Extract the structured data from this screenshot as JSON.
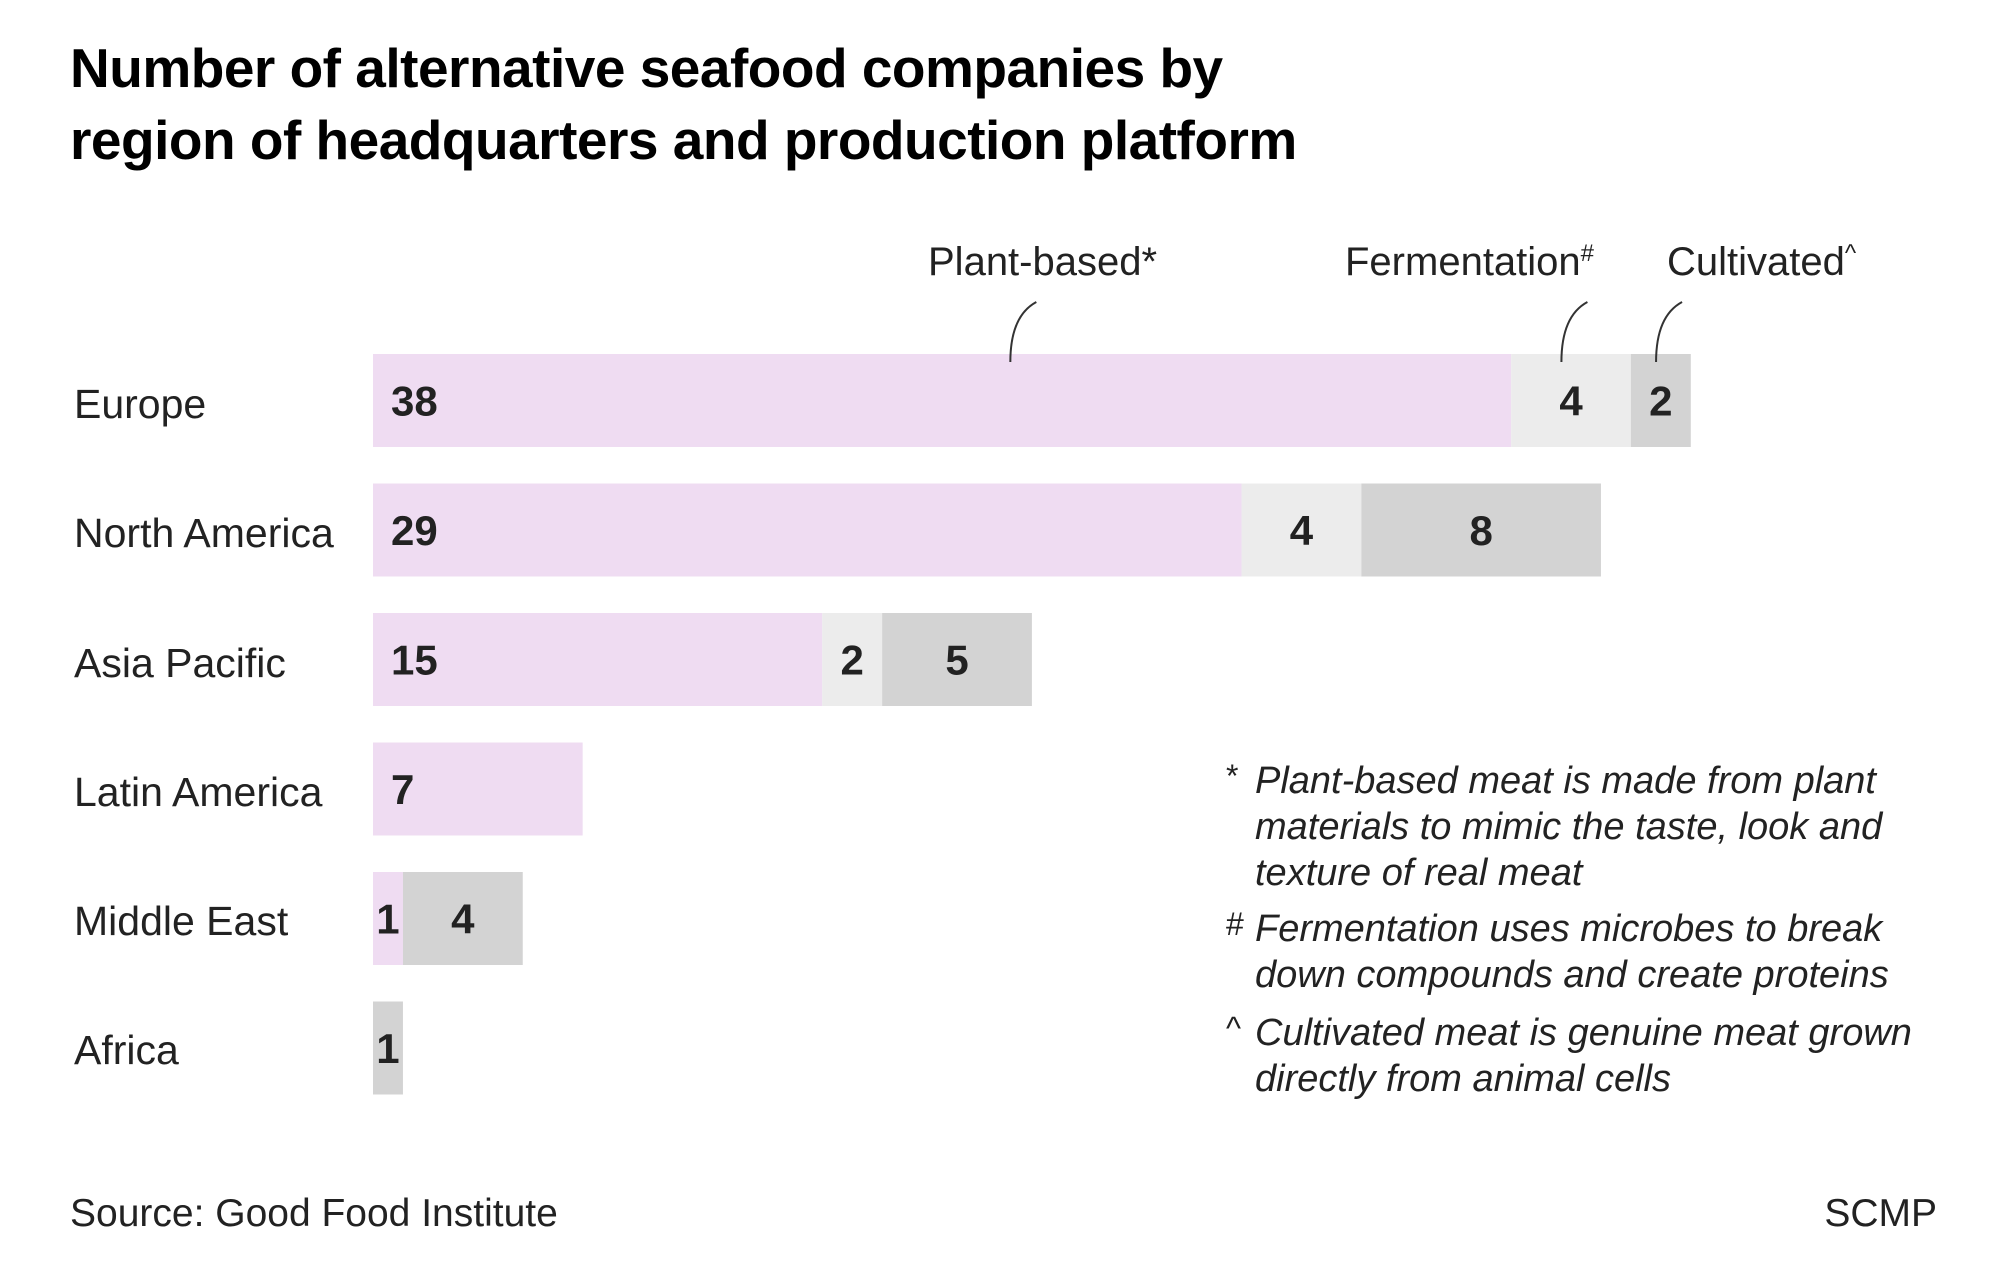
{
  "chart_data": {
    "type": "bar",
    "orientation": "horizontal",
    "stacked": true,
    "title": "Number of alternative seafood companies by region of headquarters and production platform",
    "title_lines": [
      "Number of alternative seafood companies by",
      "region of headquarters and production platform"
    ],
    "categories": [
      "Europe",
      "North America",
      "Asia Pacific",
      "Latin America",
      "Middle East",
      "Africa"
    ],
    "series": [
      {
        "name": "Plant-based",
        "mark": "*",
        "color": "#efdcf2",
        "values": [
          38,
          29,
          15,
          7,
          1,
          0
        ]
      },
      {
        "name": "Fermentation",
        "mark": "#",
        "color": "#ececec",
        "values": [
          4,
          4,
          2,
          0,
          0,
          0
        ]
      },
      {
        "name": "Cultivated",
        "mark": "^",
        "color": "#d3d3d3",
        "values": [
          2,
          8,
          5,
          0,
          4,
          1
        ]
      }
    ],
    "legend_placement": "top",
    "grid": false,
    "xlim": [
      0,
      44
    ]
  },
  "footnotes": [
    {
      "mark": "*",
      "text": "Plant-based meat is made from plant materials to mimic the taste, look and texture of real meat"
    },
    {
      "mark": "#",
      "text": "Fermentation uses microbes to break down compounds and create proteins"
    },
    {
      "mark": "^",
      "text": "Cultivated meat is genuine meat grown directly from animal cells"
    }
  ],
  "source": "Source: Good Food Institute",
  "credit": "SCMP"
}
